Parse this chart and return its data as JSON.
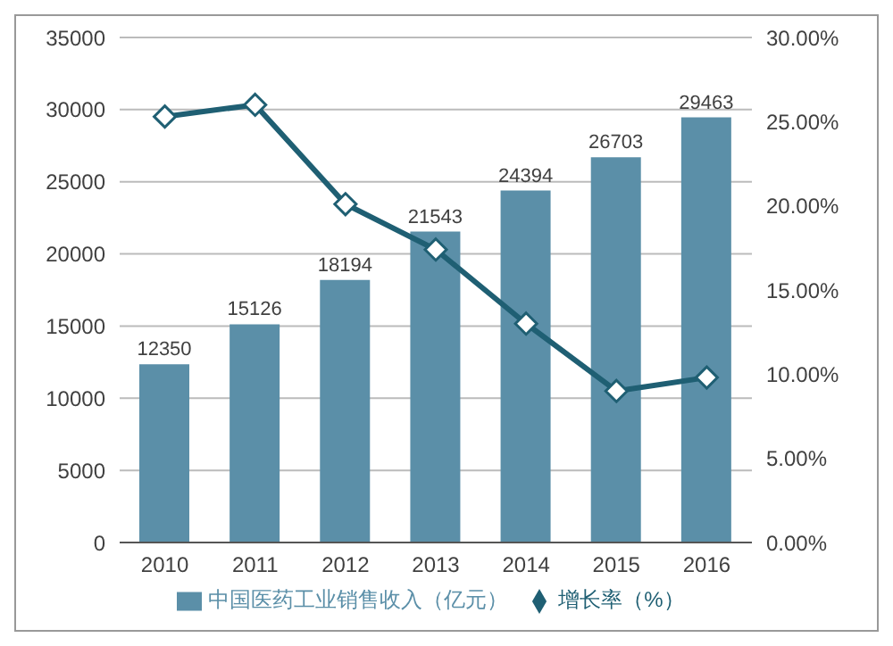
{
  "chart_data": {
    "type": "bar",
    "categories": [
      "2010",
      "2011",
      "2012",
      "2013",
      "2014",
      "2015",
      "2016"
    ],
    "series": [
      {
        "name": "中国医药工业销售收入（亿元）",
        "color": "#5b8fa8",
        "values": [
          12350,
          15126,
          18194,
          21543,
          24394,
          26703,
          29463
        ],
        "value_labels": [
          "12350",
          "15126",
          "18194",
          "21543",
          "24394",
          "26703",
          "29463"
        ]
      },
      {
        "name": "增长率（%）",
        "type": "line",
        "axis": "y2",
        "color": "#1f5f73",
        "marker": "diamond",
        "values": [
          25.3,
          26.0,
          20.1,
          17.4,
          13.0,
          9.0,
          9.8
        ]
      }
    ],
    "ylim": [
      0,
      35000
    ],
    "yticks": [
      0,
      5000,
      10000,
      15000,
      20000,
      25000,
      30000,
      35000
    ],
    "y2lim": [
      0,
      30
    ],
    "y2ticks": [
      {
        "value": 0,
        "label": "0.00%"
      },
      {
        "value": 5,
        "label": "5.00%"
      },
      {
        "value": 10,
        "label": "10.00%"
      },
      {
        "value": 15,
        "label": "15.00%"
      },
      {
        "value": 20,
        "label": "20.00%"
      },
      {
        "value": 25,
        "label": "25.00%"
      },
      {
        "value": 30,
        "label": "30.00%"
      }
    ],
    "grid": "y",
    "legend": "bottom"
  }
}
